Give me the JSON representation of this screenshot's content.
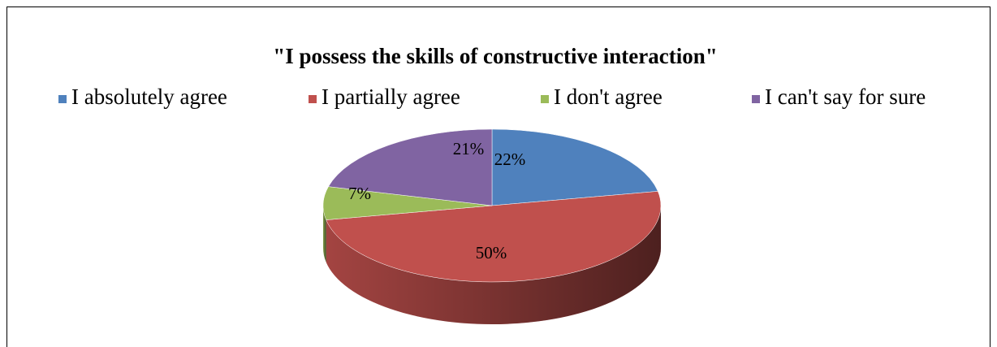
{
  "chart_data": {
    "type": "pie",
    "title": "\"I possess the skills of constructive interaction\"",
    "categories": [
      "I absolutely agree",
      "I partially agree",
      "I don't agree",
      "I can't say for sure"
    ],
    "values": [
      22,
      50,
      7,
      21
    ],
    "value_labels": [
      "22%",
      "50%",
      "7%",
      "21%"
    ],
    "colors": [
      "#4f81bd",
      "#c0504d",
      "#9bbb59",
      "#8064a2"
    ],
    "legend": "top"
  }
}
